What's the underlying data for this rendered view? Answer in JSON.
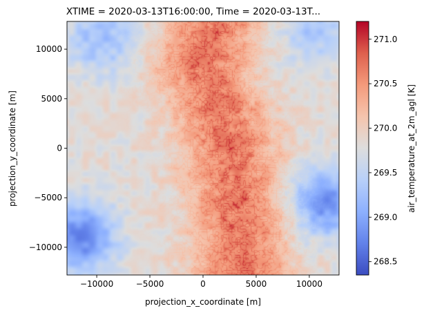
{
  "chart_data": {
    "type": "heatmap",
    "title": "XTIME = 2020-03-13T16:00:00, Time = 2020-03-13T...",
    "xlabel": "projection_x_coordinate [m]",
    "ylabel": "projection_y_coordinate [m]",
    "xlim": [
      -12800,
      12800
    ],
    "ylim": [
      -12800,
      12800
    ],
    "x_ticks": [
      -10000,
      -5000,
      0,
      5000,
      10000
    ],
    "x_tick_labels": [
      "−10000",
      "−5000",
      "0",
      "5000",
      "10000"
    ],
    "y_ticks": [
      -10000,
      -5000,
      0,
      5000,
      10000
    ],
    "y_tick_labels": [
      "−10000",
      "−5000",
      "0",
      "5000",
      "10000"
    ],
    "colormap": "coolwarm",
    "colorbar": {
      "label": "air_temperature_at_2m_agl [K]",
      "vmin": 268.35,
      "vmax": 271.2,
      "ticks": [
        268.5,
        269.0,
        269.5,
        270.0,
        270.5,
        271.0
      ],
      "tick_labels": [
        "268.5",
        "269.0",
        "269.5",
        "270.0",
        "270.5",
        "271.0"
      ]
    },
    "grid": false,
    "field_features": {
      "warm_band_center_x": [
        {
          "y": 12800,
          "x": 1000
        },
        {
          "y": 8000,
          "x": 0
        },
        {
          "y": 4000,
          "x": 1500
        },
        {
          "y": 0,
          "x": 2500
        },
        {
          "y": -4000,
          "x": 3000
        },
        {
          "y": -8000,
          "x": 3500
        },
        {
          "y": -12800,
          "x": 3500
        }
      ],
      "warm_band_halfwidth_m": 5000,
      "warm_core_value": 270.7,
      "background_value": 269.9,
      "cold_regions": [
        {
          "x": -11500,
          "y": -9000,
          "value": 268.8
        },
        {
          "x": -9500,
          "y": 11000,
          "value": 269.3
        },
        {
          "x": 11500,
          "y": -5500,
          "value": 268.9
        },
        {
          "x": 10500,
          "y": 12000,
          "value": 269.4
        }
      ]
    }
  }
}
